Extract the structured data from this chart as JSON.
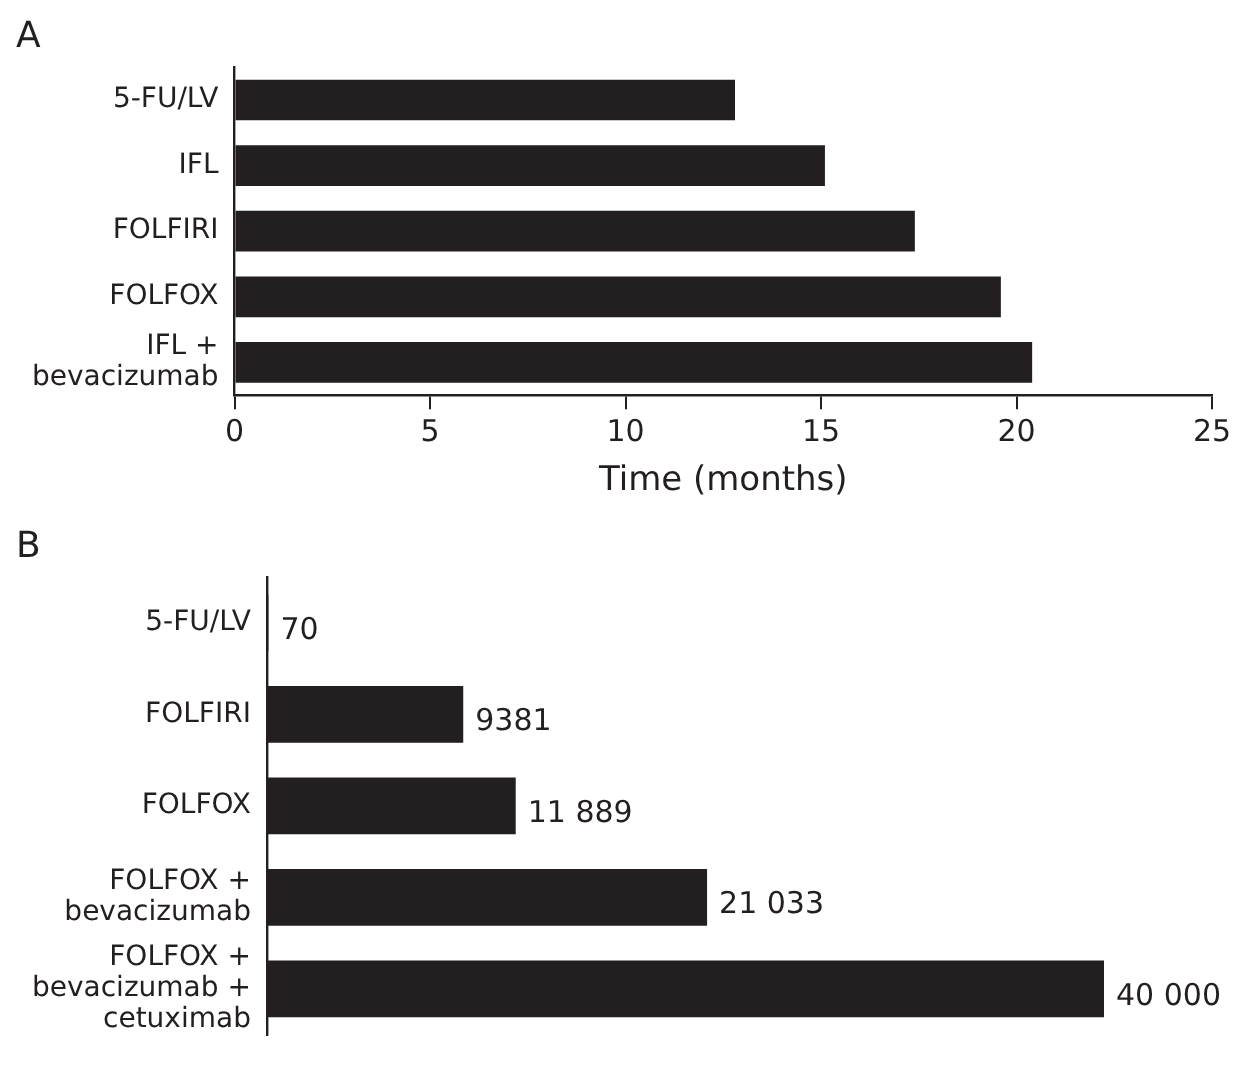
{
  "chart_data": [
    {
      "type": "bar",
      "orientation": "horizontal",
      "title": "A",
      "xlabel": "Time (months)",
      "categories": [
        "5-FU/LV",
        "IFL",
        "FOLFIRI",
        "FOLFOX",
        "IFL + bevacizumab"
      ],
      "values": [
        12.8,
        15.1,
        17.4,
        19.6,
        20.4
      ],
      "color": "#231f20",
      "xlim": [
        0,
        25
      ],
      "xticks": [
        0,
        5,
        10,
        15,
        20,
        25
      ],
      "grid": false,
      "legend": false
    },
    {
      "type": "bar",
      "orientation": "horizontal",
      "title": "B",
      "categories": [
        "5-FU/LV",
        "FOLFIRI",
        "FOLFOX",
        "FOLFOX + bevacizumab",
        "FOLFOX + bevacizumab + cetuximab"
      ],
      "values": [
        70,
        9381,
        11889,
        21033,
        40000
      ],
      "value_labels": [
        "70",
        "9381",
        "11 889",
        "21 033",
        "40 000"
      ],
      "color": "#231f20",
      "grid": false,
      "legend": false,
      "tick_labels": "y"
    }
  ]
}
